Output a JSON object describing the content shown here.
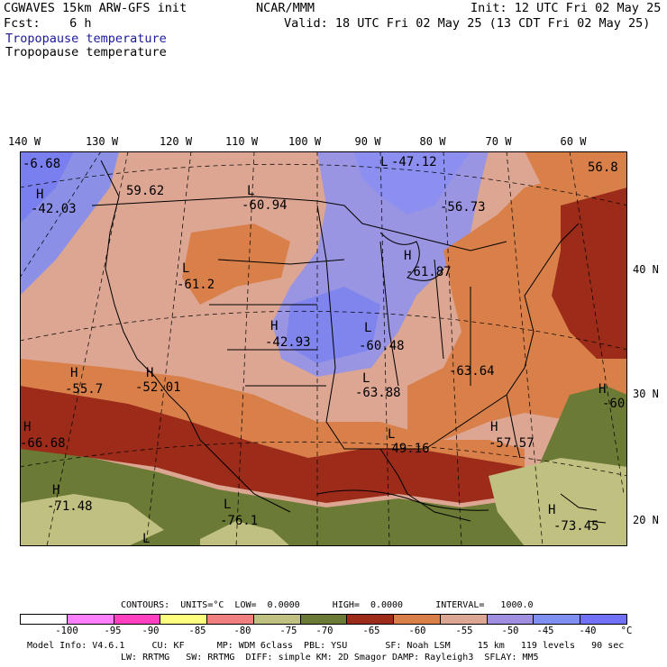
{
  "header": {
    "model": "CGWAVES 15km ARW-GFS init",
    "org": "NCAR/MMM",
    "init": "Init: 12 UTC Fri 02 May 25",
    "fcst": "Fcst:    6 h",
    "valid": "Valid: 18 UTC Fri 02 May 25 (13 CDT Fri 02 May 25)",
    "field_blue": "Tropopause temperature",
    "field_black": "Tropopause temperature"
  },
  "lon_labels": [
    "140 W",
    "130 W",
    "120 W",
    "110 W",
    "100 W",
    "90 W",
    "80 W",
    "70 W",
    "60 W"
  ],
  "lat_labels": [
    "40 N",
    "30 N",
    "20 N"
  ],
  "map_labels": [
    {
      "type": "H",
      "value": "-6.68"
    },
    {
      "type": "H",
      "value": "-42.03"
    },
    {
      "type": "",
      "value": "59.62"
    },
    {
      "type": "L",
      "value": "-60.94"
    },
    {
      "type": "L",
      "value": "-47.12"
    },
    {
      "type": "",
      "value": "-56.73"
    },
    {
      "type": "",
      "value": "56.8"
    },
    {
      "type": "L",
      "value": "-61.2"
    },
    {
      "type": "H",
      "value": "-61.87"
    },
    {
      "type": "H",
      "value": "-42.93"
    },
    {
      "type": "L",
      "value": "-60.48"
    },
    {
      "type": "H",
      "value": "-55.7"
    },
    {
      "type": "H",
      "value": "-52.01"
    },
    {
      "type": "",
      "value": "-63.64"
    },
    {
      "type": "L",
      "value": "-63.88"
    },
    {
      "type": "H",
      "value": "-60"
    },
    {
      "type": "H",
      "value": "-66.68"
    },
    {
      "type": "L",
      "value": "-49.16"
    },
    {
      "type": "H",
      "value": "-57.57"
    },
    {
      "type": "H",
      "value": "-71.48"
    },
    {
      "type": "L",
      "value": "-76.1"
    },
    {
      "type": "L",
      "value": ""
    },
    {
      "type": "H",
      "value": "-73.45"
    }
  ],
  "contours": {
    "line": "CONTOURS:  UNITS=°C  LOW=  0.0000      HIGH=  0.0000      INTERVAL=   1000.0"
  },
  "legend": {
    "colors": [
      "#ffffff",
      "#ff80ff",
      "#ff40c0",
      "#ffff80",
      "#f08080",
      "#c0c080",
      "#6b7a35",
      "#9c2b1a",
      "#d9804a",
      "#dca693",
      "#a08fe0",
      "#8090f0",
      "#7070f8"
    ],
    "ticks": [
      "-100",
      "-95",
      "-90",
      "-85",
      "-80",
      "-75",
      "-70",
      "-65",
      "-60",
      "-55",
      "-50",
      "-45",
      "-40"
    ],
    "unit": "°C"
  },
  "footer": {
    "line1": "Model Info: V4.6.1     CU: KF      MP: WDM 6class  PBL: YSU       SF: Noah LSM     15 km   119 levels   90 sec",
    "line2": "LW: RRTMG   SW: RRTMG  DIFF: simple KM: 2D Smagor DAMP: Rayleigh3  SFLAY: MM5"
  }
}
